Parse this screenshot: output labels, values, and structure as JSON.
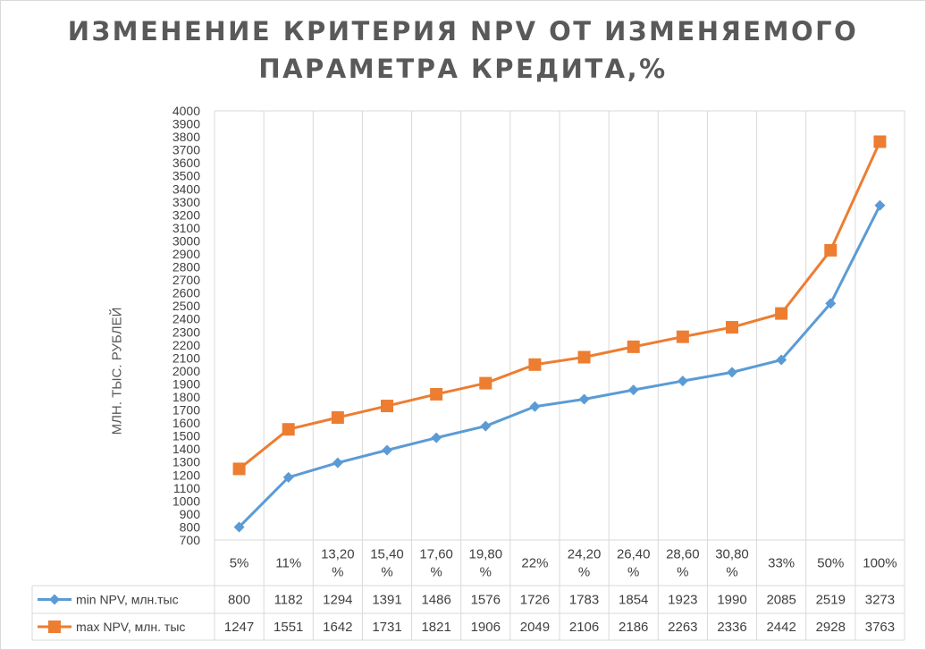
{
  "chart_data": {
    "type": "line",
    "title": "ИЗМЕНЕНИЕ КРИТЕРИЯ NPV ОТ ИЗМЕНЯЕМОГО ПАРАМЕТРА КРЕДИТА,%",
    "title_lines": [
      "ИЗМЕНЕНИЕ КРИТЕРИЯ NPV ОТ ИЗМЕНЯЕМОГО",
      "ПАРАМЕТРА КРЕДИТА,%"
    ],
    "ylabel": "МЛН. ТЫС. РУБЛЕЙ",
    "xlabel": "",
    "ylim": [
      700,
      4000
    ],
    "ytick_step": 100,
    "grid": true,
    "legend": "data-table",
    "categories": [
      "5%",
      "11%",
      "13,20 %",
      "15,40 %",
      "17,60 %",
      "19,80 %",
      "22%",
      "24,20 %",
      "26,40 %",
      "28,60 %",
      "30,80 %",
      "33%",
      "50%",
      "100%"
    ],
    "series": [
      {
        "name": "min NPV, млн.тыс",
        "color": "#5b9bd5",
        "marker": "diamond",
        "values": [
          800,
          1182,
          1294,
          1391,
          1486,
          1576,
          1726,
          1783,
          1854,
          1923,
          1990,
          2085,
          2519,
          3273
        ]
      },
      {
        "name": "max NPV, млн. тыс",
        "color": "#ed7d31",
        "marker": "square",
        "values": [
          1247,
          1551,
          1642,
          1731,
          1821,
          1906,
          2049,
          2106,
          2186,
          2263,
          2336,
          2442,
          2928,
          3763
        ]
      }
    ]
  }
}
